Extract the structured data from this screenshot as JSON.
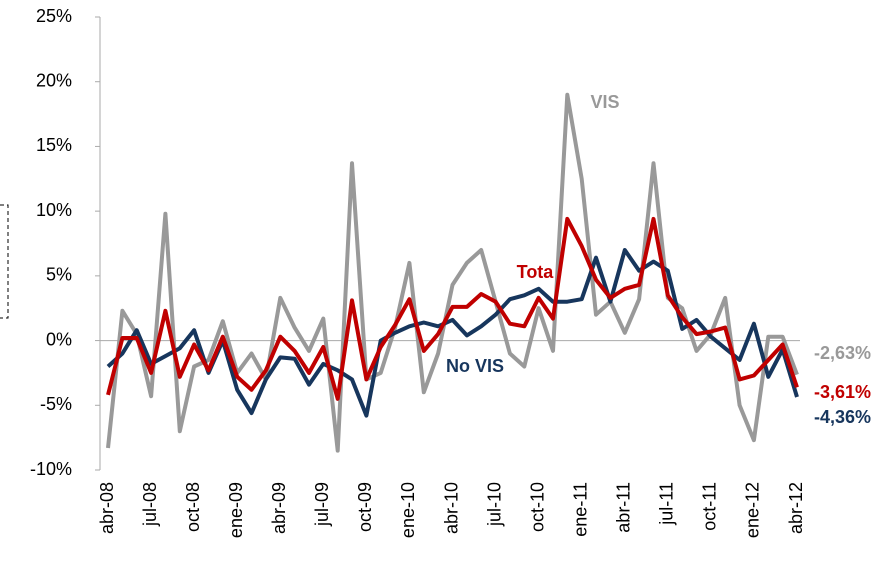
{
  "chart_data": {
    "type": "line",
    "categories": [
      "abr-08",
      null,
      null,
      "jul-08",
      null,
      null,
      "oct-08",
      null,
      null,
      "ene-09",
      null,
      null,
      "abr-09",
      null,
      null,
      "jul-09",
      null,
      null,
      "oct-09",
      null,
      null,
      "ene-10",
      null,
      null,
      "abr-10",
      null,
      null,
      "jul-10",
      null,
      null,
      "oct-10",
      null,
      null,
      "ene-11",
      null,
      null,
      "abr-11",
      null,
      null,
      "jul-11",
      null,
      null,
      "oct-11",
      null,
      null,
      "ene-12",
      null,
      null,
      "abr-12"
    ],
    "series": [
      {
        "name": "VIS",
        "color": "#999999",
        "end_label": "-2,63%",
        "values": [
          -8.3,
          2.3,
          0.5,
          -4.3,
          9.8,
          -7,
          -2,
          -1.5,
          1.5,
          -2.5,
          -1,
          -3,
          3.3,
          1,
          -0.8,
          1.7,
          -8.5,
          13.7,
          -3,
          -2.5,
          1,
          6,
          -4,
          -1,
          4.3,
          6,
          7,
          3,
          -1,
          -2,
          2.5,
          -0.8,
          19,
          12.5,
          2,
          3,
          0.6,
          3.2,
          13.7,
          3.3,
          2.5,
          -0.8,
          0.5,
          3.3,
          -5,
          -7.7,
          0.3,
          0.3,
          -2.63
        ]
      },
      {
        "name": "No VIS",
        "color": "#17365d",
        "end_label": "-4,36%",
        "values": [
          -2,
          -1,
          0.8,
          -1.8,
          -1.2,
          -0.6,
          0.8,
          -2.5,
          0,
          -3.8,
          -5.6,
          -3,
          -1.3,
          -1.4,
          -3.4,
          -1.8,
          -2.3,
          -3,
          -5.8,
          0,
          0.6,
          1.1,
          1.4,
          1.1,
          1.6,
          0.4,
          1.1,
          2,
          3.2,
          3.5,
          4,
          3,
          3,
          3.2,
          6.4,
          3,
          7,
          5.4,
          6.1,
          5.4,
          0.9,
          1.6,
          0.3,
          -0.6,
          -1.5,
          1.3,
          -2.8,
          -0.7,
          -4.36
        ]
      },
      {
        "name": "Tota",
        "color": "#c00000",
        "end_label": "-3,61%",
        "values": [
          -4.2,
          0.2,
          0.2,
          -2.5,
          2.3,
          -2.8,
          -0.3,
          -2.3,
          0.3,
          -2.8,
          -3.8,
          -2.3,
          0.3,
          -0.8,
          -2.5,
          -0.5,
          -4.5,
          3.1,
          -3,
          -0.5,
          1.2,
          3.2,
          -0.8,
          0.5,
          2.6,
          2.6,
          3.6,
          3,
          1.3,
          1.1,
          3.3,
          1.7,
          9.4,
          7.3,
          4.7,
          3.3,
          4,
          4.3,
          9.4,
          3.5,
          1.8,
          0.5,
          0.7,
          1,
          -3,
          -2.7,
          -1.5,
          -0.3,
          -3.61
        ]
      }
    ],
    "ylim": [
      -10,
      25
    ],
    "yticks": [
      {
        "value": -10,
        "label": "-10%"
      },
      {
        "value": -5,
        "label": "-5%"
      },
      {
        "value": 0,
        "label": "0%"
      },
      {
        "value": 5,
        "label": "5%"
      },
      {
        "value": 10,
        "label": "10%"
      },
      {
        "value": 15,
        "label": "15%"
      },
      {
        "value": 20,
        "label": "20%"
      },
      {
        "value": 25,
        "label": "25%"
      }
    ],
    "grid": false
  }
}
